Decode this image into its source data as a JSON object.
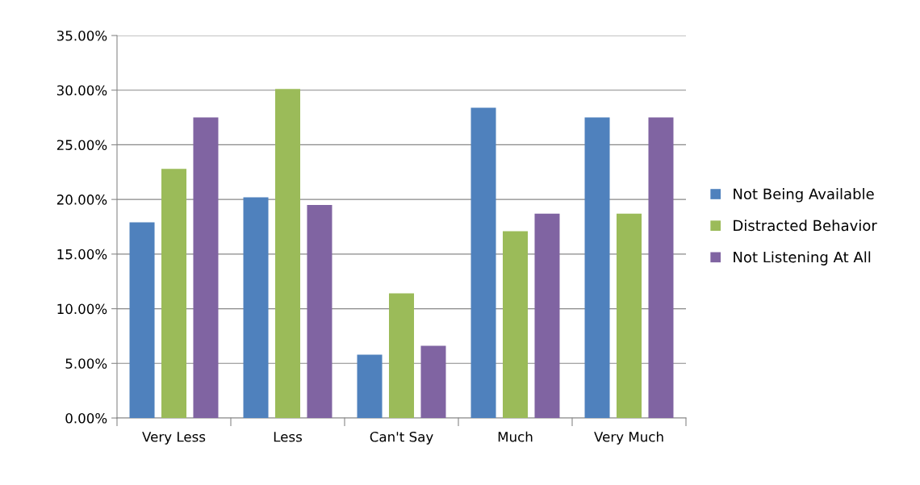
{
  "chart_data": {
    "type": "bar",
    "categories": [
      "Very Less",
      "Less",
      "Can't Say",
      "Much",
      "Very Much"
    ],
    "series": [
      {
        "name": "Not Being Available",
        "color": "#4f81bd",
        "values": [
          17.9,
          20.2,
          5.8,
          28.4,
          27.5
        ]
      },
      {
        "name": "Distracted Behavior",
        "color": "#9bbb59",
        "values": [
          22.8,
          30.1,
          11.4,
          17.1,
          18.7
        ]
      },
      {
        "name": "Not Listening At All",
        "color": "#8064a2",
        "values": [
          27.5,
          19.5,
          6.6,
          18.7,
          27.5
        ]
      }
    ],
    "ylim": [
      0,
      35
    ],
    "yticks": [
      {
        "value": 0,
        "label": "0.00%"
      },
      {
        "value": 5,
        "label": "5.00%"
      },
      {
        "value": 10,
        "label": "10.00%"
      },
      {
        "value": 15,
        "label": "15.00%"
      },
      {
        "value": 20,
        "label": "20.00%"
      },
      {
        "value": 25,
        "label": "25.00%"
      },
      {
        "value": 30,
        "label": "30.00%"
      },
      {
        "value": 35,
        "label": "35.00%"
      }
    ],
    "grid": "y",
    "legend": "right"
  }
}
